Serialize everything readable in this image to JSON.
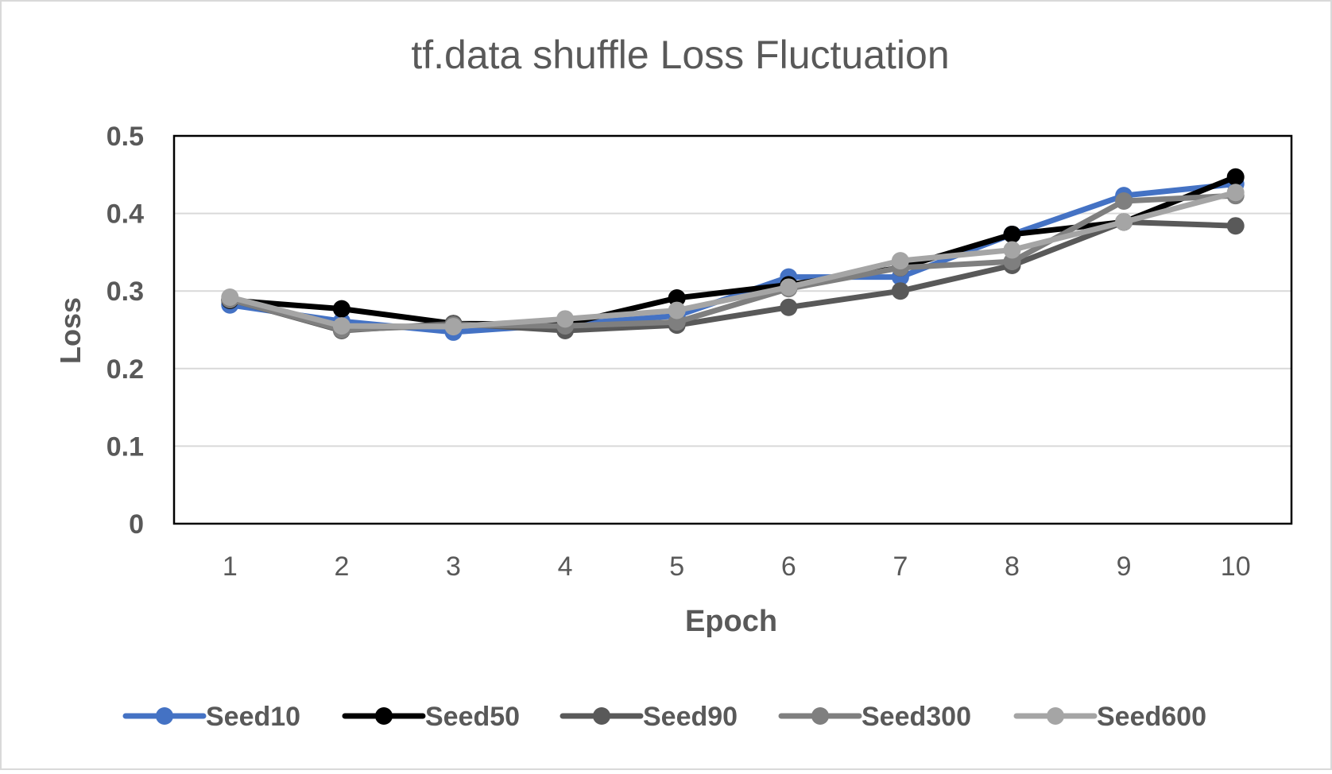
{
  "chart_data": {
    "type": "line",
    "title": "tf.data shuffle Loss Fluctuation",
    "xlabel": "Epoch",
    "ylabel": "Loss",
    "categories": [
      "1",
      "2",
      "3",
      "4",
      "5",
      "6",
      "7",
      "8",
      "9",
      "10"
    ],
    "ylim": [
      0,
      0.5
    ],
    "yticks": [
      {
        "value": 0,
        "label": "0"
      },
      {
        "value": 0.1,
        "label": "0.1"
      },
      {
        "value": 0.2,
        "label": "0.2"
      },
      {
        "value": 0.3,
        "label": "0.3"
      },
      {
        "value": 0.4,
        "label": "0.4"
      },
      {
        "value": 0.5,
        "label": "0.5"
      }
    ],
    "grid": true,
    "legend_position": "bottom",
    "series": [
      {
        "name": "Seed10",
        "color": "#4472C4",
        "values": [
          0.282,
          0.261,
          0.247,
          0.257,
          0.268,
          0.318,
          0.318,
          0.373,
          0.423,
          0.438
        ]
      },
      {
        "name": "Seed50",
        "color": "#000000",
        "values": [
          0.288,
          0.277,
          0.258,
          0.257,
          0.291,
          0.308,
          0.33,
          0.373,
          0.389,
          0.447
        ]
      },
      {
        "name": "Seed90",
        "color": "#595959",
        "values": [
          0.289,
          0.249,
          0.258,
          0.249,
          0.256,
          0.279,
          0.3,
          0.333,
          0.389,
          0.384
        ]
      },
      {
        "name": "Seed300",
        "color": "#7F7F7F",
        "values": [
          0.289,
          0.25,
          0.256,
          0.255,
          0.26,
          0.303,
          0.33,
          0.338,
          0.416,
          0.423
        ]
      },
      {
        "name": "Seed600",
        "color": "#A5A5A5",
        "values": [
          0.292,
          0.255,
          0.254,
          0.264,
          0.275,
          0.305,
          0.339,
          0.353,
          0.389,
          0.427
        ]
      }
    ]
  }
}
